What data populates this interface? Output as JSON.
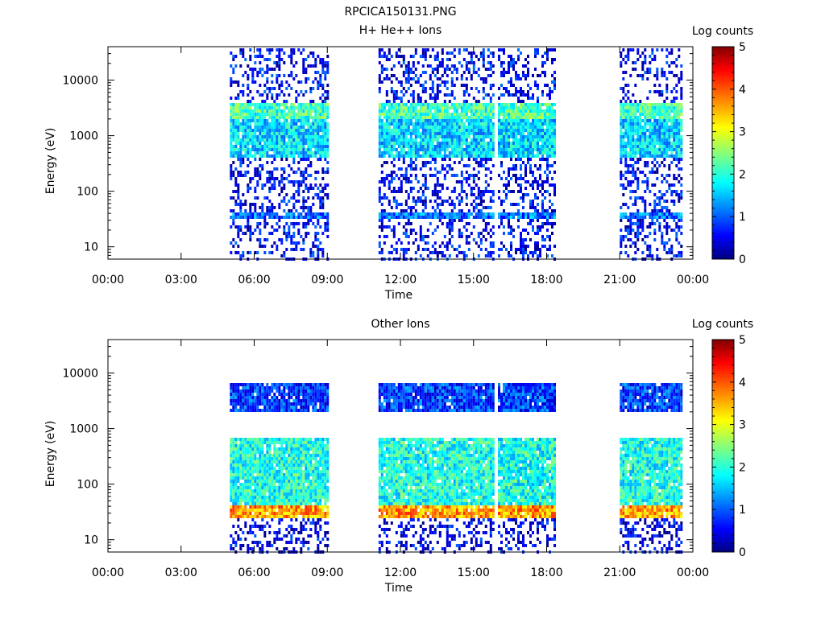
{
  "figure_title": "RPCICA150131.PNG",
  "chart_data": [
    {
      "type": "heatmap",
      "title": "H+ He++ Ions",
      "xlabel": "Time",
      "ylabel": "Energy (eV)",
      "x_ticks": [
        "00:00",
        "03:00",
        "06:00",
        "09:00",
        "12:00",
        "15:00",
        "18:00",
        "21:00",
        "00:00"
      ],
      "xlim_hours": [
        0,
        24
      ],
      "y_scale": "log",
      "y_ticks": [
        {
          "value": 10,
          "label": "10"
        },
        {
          "value": 100,
          "label": "100"
        },
        {
          "value": 1000,
          "label": "1000"
        },
        {
          "value": 10000,
          "label": "10000"
        }
      ],
      "ylim": [
        6,
        40000
      ],
      "colorbar": {
        "label": "Log counts",
        "range": [
          0,
          5
        ],
        "ticks": [
          "0",
          "1",
          "2",
          "3",
          "4",
          "5"
        ],
        "colormap": "jet"
      },
      "data_intervals_hours": [
        [
          5.0,
          9.05
        ],
        [
          11.1,
          15.85
        ],
        [
          16.0,
          18.35
        ],
        [
          21.0,
          23.55
        ]
      ],
      "features": [
        {
          "kind": "band",
          "energy_range_eV": [
            2000,
            4000
          ],
          "log_counts": 2.2,
          "description": "upper ion band"
        },
        {
          "kind": "band",
          "energy_range_eV": [
            400,
            2000
          ],
          "log_counts": 1.7,
          "description": "main ion population"
        },
        {
          "kind": "line",
          "energy_eV": 35,
          "log_counts": 1.2
        },
        {
          "kind": "background",
          "energy_range_eV": [
            6,
            40000
          ],
          "log_counts": 0.6,
          "description": "sparse noise counts"
        }
      ]
    },
    {
      "type": "heatmap",
      "title": "Other Ions",
      "xlabel": "Time",
      "ylabel": "Energy (eV)",
      "x_ticks": [
        "00:00",
        "03:00",
        "06:00",
        "09:00",
        "12:00",
        "15:00",
        "18:00",
        "21:00",
        "00:00"
      ],
      "xlim_hours": [
        0,
        24
      ],
      "y_scale": "log",
      "y_ticks": [
        {
          "value": 10,
          "label": "10"
        },
        {
          "value": 100,
          "label": "100"
        },
        {
          "value": 1000,
          "label": "1000"
        },
        {
          "value": 10000,
          "label": "10000"
        }
      ],
      "ylim": [
        6,
        40000
      ],
      "colorbar": {
        "label": "Log counts",
        "range": [
          0,
          5
        ],
        "ticks": [
          "0",
          "1",
          "2",
          "3",
          "4",
          "5"
        ],
        "colormap": "jet"
      },
      "data_intervals_hours": [
        [
          5.0,
          9.05
        ],
        [
          11.1,
          15.85
        ],
        [
          16.0,
          18.35
        ],
        [
          21.0,
          23.55
        ]
      ],
      "features": [
        {
          "kind": "band",
          "energy_range_eV": [
            2000,
            7000
          ],
          "log_counts": 0.9,
          "description": "high energy band"
        },
        {
          "kind": "band",
          "energy_range_eV": [
            40,
            700
          ],
          "log_counts": 2.0,
          "description": "broad population"
        },
        {
          "kind": "band",
          "energy_range_eV": [
            24,
            42
          ],
          "log_counts": 3.6,
          "description": "intense low energy band"
        },
        {
          "kind": "background",
          "energy_range_eV": [
            6,
            24
          ],
          "log_counts": 0.5,
          "description": "sparse low energy counts"
        }
      ]
    }
  ]
}
